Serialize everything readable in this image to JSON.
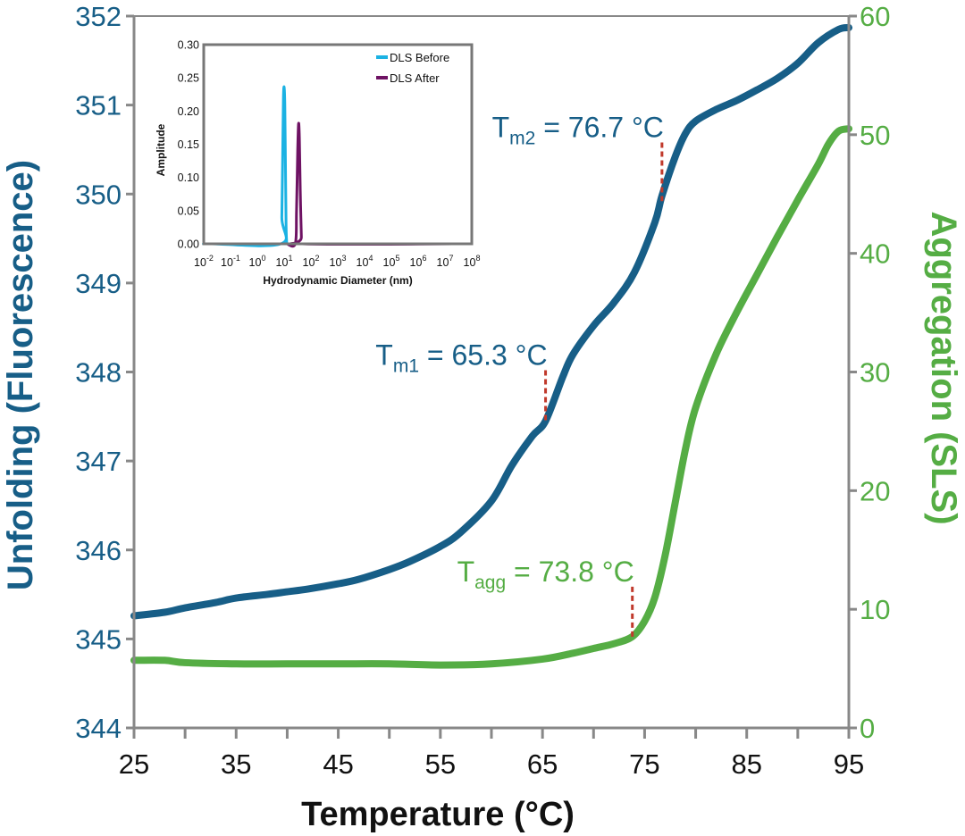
{
  "colors": {
    "unfolding": "#175e87",
    "aggregation": "#55ad44",
    "axis": "#888888",
    "marker": "#c0392b",
    "dls_before": "#1bb2e3",
    "dls_after": "#6e1263"
  },
  "chart_data": [
    {
      "type": "line",
      "xlabel": "Temperature (°C)",
      "ylabel_left": "Unfolding (Fluorescence)",
      "ylabel_right": "Aggregation (SLS)",
      "xlim": [
        25,
        95
      ],
      "ylim_left": [
        344,
        352
      ],
      "ylim_right": [
        0,
        60
      ],
      "x_ticks": [
        "25",
        "35",
        "45",
        "55",
        "65",
        "75",
        "85",
        "95"
      ],
      "y_left_ticks": [
        "344",
        "345",
        "346",
        "347",
        "348",
        "349",
        "350",
        "351",
        "352"
      ],
      "y_right_ticks": [
        "0",
        "10",
        "20",
        "30",
        "40",
        "50",
        "60"
      ],
      "series": [
        {
          "axis": "left",
          "color": "#175e87",
          "x": [
            25,
            28,
            30,
            33,
            35,
            38,
            40,
            42,
            45,
            47,
            50,
            52,
            55,
            57,
            60,
            62,
            64,
            65.3,
            67,
            68,
            70,
            72,
            74,
            76,
            76.7,
            78,
            79,
            80,
            82,
            84,
            86,
            88,
            90,
            92,
            94,
            95
          ],
          "y": [
            345.26,
            345.3,
            345.35,
            345.41,
            345.46,
            345.5,
            345.53,
            345.56,
            345.62,
            345.67,
            345.78,
            345.87,
            346.04,
            346.2,
            346.55,
            346.95,
            347.28,
            347.45,
            347.95,
            348.2,
            348.52,
            348.78,
            349.12,
            349.68,
            349.98,
            350.42,
            350.68,
            350.82,
            350.95,
            351.05,
            351.17,
            351.3,
            351.47,
            351.7,
            351.85,
            351.87
          ]
        },
        {
          "axis": "right",
          "color": "#55ad44",
          "x": [
            25,
            28,
            30,
            35,
            40,
            45,
            50,
            55,
            60,
            65,
            68,
            70,
            72,
            73.8,
            75,
            76,
            77,
            78,
            79,
            80,
            82,
            84,
            86,
            88,
            90,
            92,
            93,
            94,
            95
          ],
          "y": [
            5.7,
            5.7,
            5.5,
            5.4,
            5.4,
            5.4,
            5.4,
            5.3,
            5.4,
            5.8,
            6.3,
            6.7,
            7.1,
            7.7,
            9.0,
            11.0,
            14.5,
            19.0,
            23.5,
            27.0,
            31.5,
            35.0,
            38.2,
            41.4,
            44.5,
            47.5,
            49.2,
            50.3,
            50.5
          ]
        }
      ],
      "annotations": [
        {
          "base": "T",
          "sub": "m1",
          "rest": " = 65.3 °C",
          "x": 65.3,
          "axis": "left",
          "y_top": 348.02,
          "y_bottom": 347.44,
          "color": "#175e87"
        },
        {
          "base": "T",
          "sub": "m2",
          "rest": " = 76.7 °C",
          "x": 76.7,
          "axis": "left",
          "y_top": 350.58,
          "y_bottom": 349.92,
          "color": "#175e87"
        },
        {
          "base": "T",
          "sub": "agg",
          "rest": " = 73.8 °C",
          "x": 73.8,
          "axis": "right",
          "y_top": 11.9,
          "y_bottom": 7.5,
          "color": "#55ad44"
        }
      ]
    },
    {
      "type": "line",
      "inset": true,
      "xlabel": "Hydrodynamic Diameter (nm)",
      "ylabel": "Amplitude",
      "xscale": "log",
      "xlim_exponent": [
        -2,
        8
      ],
      "ylim": [
        0,
        0.3
      ],
      "y_ticks": [
        "0.00",
        "0.05",
        "0.10",
        "0.15",
        "0.20",
        "0.25",
        "0.30"
      ],
      "x_tick_exponents": [
        "-2",
        "-1",
        "0",
        "1",
        "2",
        "3",
        "4",
        "5",
        "6",
        "7",
        "8"
      ],
      "x_tick_base": "10",
      "legend": {
        "position": "top-right",
        "entries": [
          "DLS Before",
          "DLS After"
        ]
      },
      "series": [
        {
          "name": "DLS Before",
          "color": "#1bb2e3",
          "x": [
            0.01,
            0.02,
            7.6,
            8.2,
            8.8,
            9.4,
            10.0,
            10.6,
            11.2,
            11.8,
            12.5
          ],
          "y": [
            0.0,
            0.0,
            0.0,
            0.04,
            0.13,
            0.22,
            0.236,
            0.21,
            0.12,
            0.03,
            0.0
          ]
        },
        {
          "name": "DLS After",
          "color": "#6e1263",
          "x": [
            12.5,
            26,
            29,
            32,
            34.5,
            37,
            40,
            44,
            48,
            20000000
          ],
          "y": [
            0.0,
            0.0,
            0.05,
            0.14,
            0.181,
            0.16,
            0.08,
            0.01,
            0.0,
            0.0
          ]
        }
      ]
    }
  ]
}
